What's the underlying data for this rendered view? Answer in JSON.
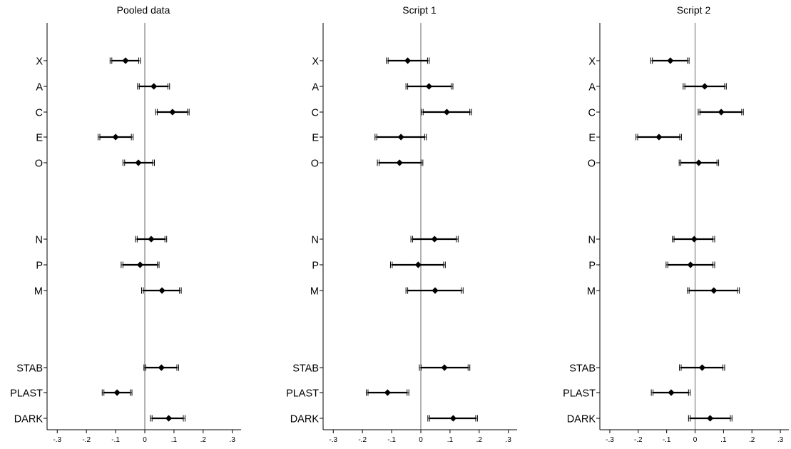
{
  "chart_data": [
    {
      "type": "scatter",
      "title": "Pooled data",
      "xlabel": "",
      "ylabel": "",
      "xlim": [
        -0.33,
        0.33
      ],
      "xticks": [
        -0.3,
        -0.2,
        -0.1,
        0,
        0.1,
        0.2,
        0.3
      ],
      "xtick_labels": [
        "-.3",
        "-.2",
        "-.1",
        "0",
        ".1",
        ".2",
        ".3"
      ],
      "categories": [
        "X",
        "A",
        "C",
        "E",
        "O",
        "N",
        "P",
        "M",
        "STAB",
        "PLAST",
        "DARK"
      ],
      "estimates": [
        -0.066,
        0.031,
        0.095,
        -0.1,
        -0.022,
        0.022,
        -0.016,
        0.059,
        0.057,
        -0.095,
        0.082
      ],
      "ci_inner_low": [
        -0.113,
        -0.019,
        0.043,
        -0.154,
        -0.069,
        -0.026,
        -0.075,
        -0.005,
        0.003,
        -0.14,
        0.025
      ],
      "ci_inner_high": [
        -0.021,
        0.079,
        0.146,
        -0.046,
        0.027,
        0.069,
        0.043,
        0.119,
        0.11,
        -0.05,
        0.132
      ],
      "ci_outer_low": [
        -0.119,
        -0.025,
        0.037,
        -0.16,
        -0.075,
        -0.032,
        -0.081,
        -0.011,
        -0.003,
        -0.146,
        0.019
      ],
      "ci_outer_high": [
        -0.015,
        0.085,
        0.152,
        -0.04,
        0.033,
        0.075,
        0.049,
        0.125,
        0.116,
        -0.044,
        0.138
      ],
      "reference_line_x": 0
    },
    {
      "type": "scatter",
      "title": "Script 1",
      "xlabel": "",
      "ylabel": "",
      "xlim": [
        -0.33,
        0.33
      ],
      "xticks": [
        -0.3,
        -0.2,
        -0.1,
        0,
        0.1,
        0.2,
        0.3
      ],
      "xtick_labels": [
        "-.3",
        "-.2",
        "-.1",
        "0",
        ".1",
        ".2",
        ".3"
      ],
      "categories": [
        "X",
        "A",
        "C",
        "E",
        "O",
        "N",
        "P",
        "M",
        "STAB",
        "PLAST",
        "DARK"
      ],
      "estimates": [
        -0.045,
        0.028,
        0.089,
        -0.068,
        -0.073,
        0.047,
        -0.009,
        0.049,
        0.081,
        -0.114,
        0.111
      ],
      "ci_inner_low": [
        -0.112,
        -0.045,
        0.008,
        -0.151,
        -0.143,
        -0.028,
        -0.098,
        -0.045,
        0.001,
        -0.181,
        0.03
      ],
      "ci_inner_high": [
        0.023,
        0.104,
        0.168,
        0.013,
        0.001,
        0.122,
        0.078,
        0.139,
        0.162,
        -0.047,
        0.188
      ],
      "ci_outer_low": [
        -0.118,
        -0.051,
        0.002,
        -0.157,
        -0.149,
        -0.034,
        -0.104,
        -0.051,
        -0.005,
        -0.187,
        0.024
      ],
      "ci_outer_high": [
        0.029,
        0.11,
        0.174,
        0.019,
        0.007,
        0.128,
        0.084,
        0.145,
        0.168,
        -0.041,
        0.194
      ],
      "reference_line_x": 0
    },
    {
      "type": "scatter",
      "title": "Script 2",
      "xlabel": "",
      "ylabel": "",
      "xlim": [
        -0.33,
        0.33
      ],
      "xticks": [
        -0.3,
        -0.2,
        -0.1,
        0,
        0.1,
        0.2,
        0.3
      ],
      "xtick_labels": [
        "-.3",
        "-.2",
        "-.1",
        "0",
        ".1",
        ".2",
        ".3"
      ],
      "categories": [
        "X",
        "A",
        "C",
        "E",
        "O",
        "N",
        "P",
        "M",
        "STAB",
        "PLAST",
        "DARK"
      ],
      "estimates": [
        -0.087,
        0.034,
        0.092,
        -0.127,
        0.013,
        -0.003,
        -0.016,
        0.066,
        0.025,
        -0.084,
        0.053
      ],
      "ci_inner_low": [
        -0.15,
        -0.036,
        0.017,
        -0.202,
        -0.05,
        -0.074,
        -0.096,
        -0.021,
        -0.049,
        -0.148,
        -0.017
      ],
      "ci_inner_high": [
        -0.027,
        0.104,
        0.164,
        -0.054,
        0.077,
        0.063,
        0.063,
        0.15,
        0.098,
        -0.023,
        0.124
      ],
      "ci_outer_low": [
        -0.156,
        -0.042,
        0.011,
        -0.208,
        -0.056,
        -0.08,
        -0.102,
        -0.027,
        -0.055,
        -0.154,
        -0.023
      ],
      "ci_outer_high": [
        -0.021,
        0.11,
        0.17,
        -0.048,
        0.083,
        0.069,
        0.069,
        0.156,
        0.104,
        -0.017,
        0.13
      ],
      "reference_line_x": 0
    }
  ]
}
